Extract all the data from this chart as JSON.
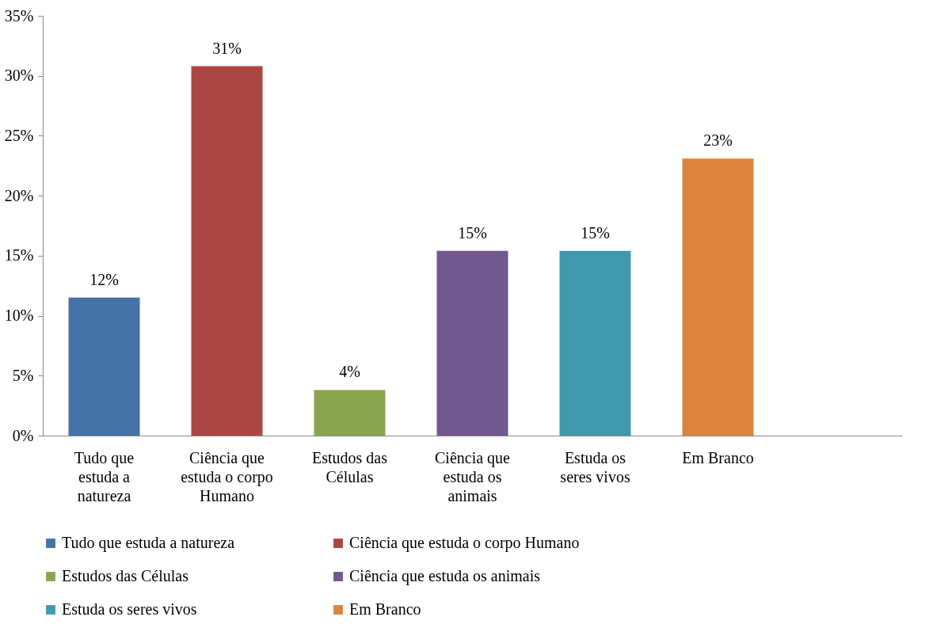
{
  "chart_data": {
    "type": "bar",
    "categories": [
      "Tudo que estuda a natureza",
      "Ciência que estuda o corpo Humano",
      "Estudos das Células",
      "Ciência que estuda os animais",
      "Estuda os seres vivos",
      "Em Branco",
      null
    ],
    "series": [
      {
        "name": "Tudo que estuda a natureza",
        "color": "#4572a7",
        "values": [
          11.5,
          null,
          null,
          null,
          null,
          null,
          null
        ],
        "value_labels": [
          "12%",
          null,
          null,
          null,
          null,
          null,
          null
        ]
      },
      {
        "name": "Ciência que estuda o corpo Humano",
        "color": "#aa4643",
        "values": [
          null,
          30.8,
          null,
          null,
          null,
          null,
          null
        ],
        "value_labels": [
          null,
          "31%",
          null,
          null,
          null,
          null,
          null
        ]
      },
      {
        "name": "Estudos das Células",
        "color": "#89a54e",
        "values": [
          null,
          null,
          3.8,
          null,
          null,
          null,
          null
        ],
        "value_labels": [
          null,
          null,
          "4%",
          null,
          null,
          null,
          null
        ]
      },
      {
        "name": "Ciência que estuda os animais",
        "color": "#71588f",
        "values": [
          null,
          null,
          null,
          15.4,
          null,
          null,
          null
        ],
        "value_labels": [
          null,
          null,
          null,
          "15%",
          null,
          null,
          null
        ]
      },
      {
        "name": "Estuda os seres vivos",
        "color": "#4198af",
        "values": [
          null,
          null,
          null,
          null,
          15.4,
          null,
          null
        ],
        "value_labels": [
          null,
          null,
          null,
          null,
          "15%",
          null,
          null
        ]
      },
      {
        "name": "Em Branco",
        "color": "#db843d",
        "values": [
          null,
          null,
          null,
          null,
          null,
          23.1,
          null
        ],
        "value_labels": [
          null,
          null,
          null,
          null,
          null,
          "23%",
          null
        ]
      }
    ],
    "ylim": [
      0,
      35
    ],
    "yticks": [
      {
        "value": 0,
        "label": "0%"
      },
      {
        "value": 5,
        "label": "5%"
      },
      {
        "value": 10,
        "label": "10%"
      },
      {
        "value": 15,
        "label": "15%"
      },
      {
        "value": 20,
        "label": "20%"
      },
      {
        "value": 25,
        "label": "25%"
      },
      {
        "value": 30,
        "label": "30%"
      },
      {
        "value": 35,
        "label": "35%"
      }
    ],
    "grid": false,
    "legend": "bottom"
  }
}
